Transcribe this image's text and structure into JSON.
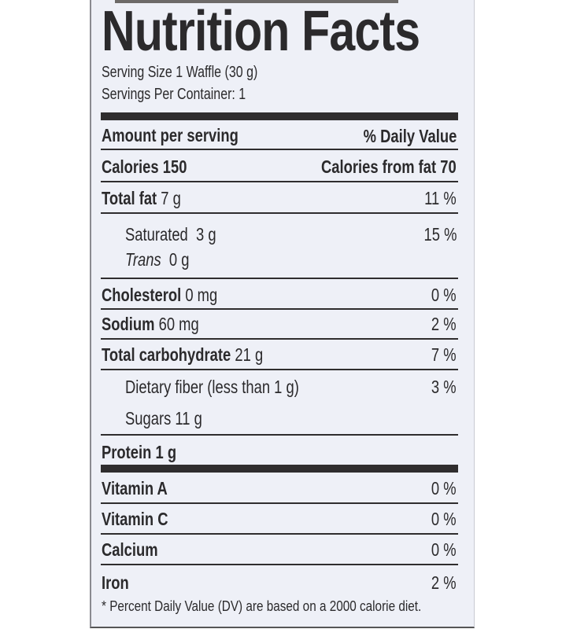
{
  "title": "Nutrition Facts",
  "serving_size": "Serving Size 1 Waffle (30 g)",
  "servings_per_container": "Servings Per Container: 1",
  "header": {
    "amount": "Amount per serving",
    "dv": "% Daily Value"
  },
  "calories": {
    "label": "Calories 150",
    "from_fat": "Calories from fat 70"
  },
  "rows": [
    {
      "label": "Total fat",
      "amount": "7 g",
      "dv": "11 %"
    },
    {
      "label": "Saturated",
      "amount": "3 g",
      "dv": "15 %"
    },
    {
      "label": "Trans",
      "amount": "0 g"
    },
    {
      "label": "Cholesterol",
      "amount": "0 mg",
      "dv": "0 %"
    },
    {
      "label": "Sodium",
      "amount": "60 mg",
      "dv": "2 %"
    },
    {
      "label": "Total carbohydrate",
      "amount": "21 g",
      "dv": "7 %"
    },
    {
      "label": "Dietary fiber (less than 1 g)",
      "dv": "3 %"
    },
    {
      "label": "Sugars",
      "amount": "11 g"
    },
    {
      "label": "Protein",
      "amount": "1 g"
    }
  ],
  "vitamins": [
    {
      "label": "Vitamin A",
      "dv": "0 %"
    },
    {
      "label": "Vitamin C",
      "dv": "0 %"
    },
    {
      "label": "Calcium",
      "dv": "0 %"
    },
    {
      "label": "Iron",
      "dv": "2 %"
    }
  ],
  "footnote": "* Percent Daily Value (DV) are based on a 2000 calorie diet."
}
